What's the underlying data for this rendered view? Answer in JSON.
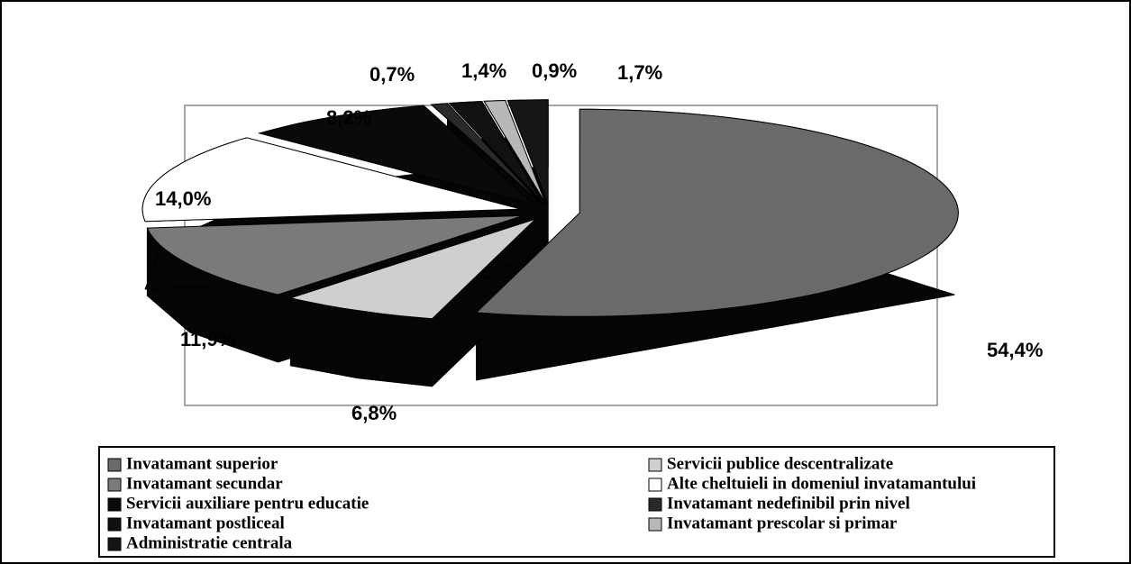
{
  "chart_data": {
    "type": "pie",
    "categories": [
      "Invatamant superior",
      "Servicii publice descentralizate",
      "Invatamant secundar",
      "Alte cheltuieli in domeniul invatamantului",
      "Servicii auxiliare pentru educatie",
      "Invatamant nedefinibil prin nivel",
      "Invatamant postliceal",
      "Invatamant prescolar si primar",
      "Administratie centrala"
    ],
    "values": [
      54.4,
      6.8,
      11.9,
      14.0,
      8.2,
      0.7,
      1.4,
      0.9,
      1.7
    ],
    "value_labels": [
      "54,4%",
      "6,8%",
      "11,9%",
      "14,0%",
      "8,2%",
      "0,7%",
      "1,4%",
      "0,9%",
      "1,7%"
    ],
    "colors": [
      "#6a6a6a",
      "#cfcfcf",
      "#7a7a7a",
      "#ffffff",
      "#0a0a0a",
      "#2a2a2a",
      "#111111",
      "#b8b8b8",
      "#161616"
    ],
    "legend": "bottom"
  }
}
